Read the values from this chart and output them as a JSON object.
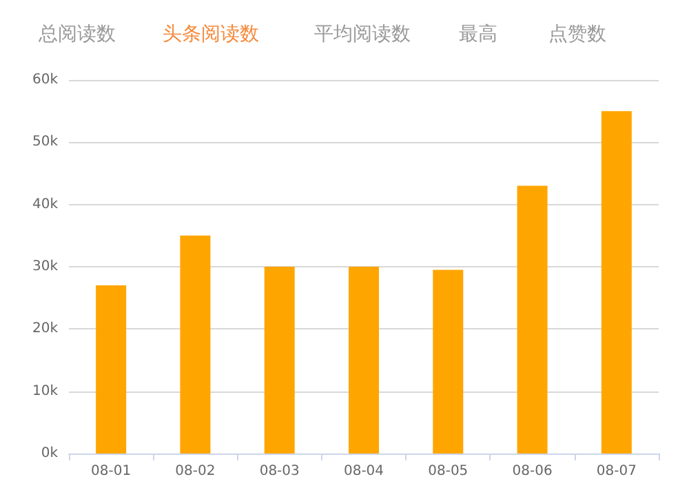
{
  "chart_data": {
    "type": "bar",
    "annotations": [
      "总阅读数",
      "头条阅读数",
      "平均阅读数",
      "最高",
      "点赞数"
    ],
    "categories": [
      "08-01",
      "08-02",
      "08-03",
      "08-04",
      "08-05",
      "08-06",
      "08-07"
    ],
    "values": [
      27000,
      35000,
      30000,
      30000,
      29500,
      43000,
      55000
    ],
    "color": "#ffa500",
    "ylim": [
      0,
      60000
    ],
    "yticks": [
      {
        "value": 0,
        "label": "0k"
      },
      {
        "value": 10000,
        "label": "10k"
      },
      {
        "value": 20000,
        "label": "20k"
      },
      {
        "value": 30000,
        "label": "30k"
      },
      {
        "value": 40000,
        "label": "40k"
      },
      {
        "value": 50000,
        "label": "50k"
      },
      {
        "value": 60000,
        "label": "60k"
      }
    ],
    "grid": "y"
  }
}
